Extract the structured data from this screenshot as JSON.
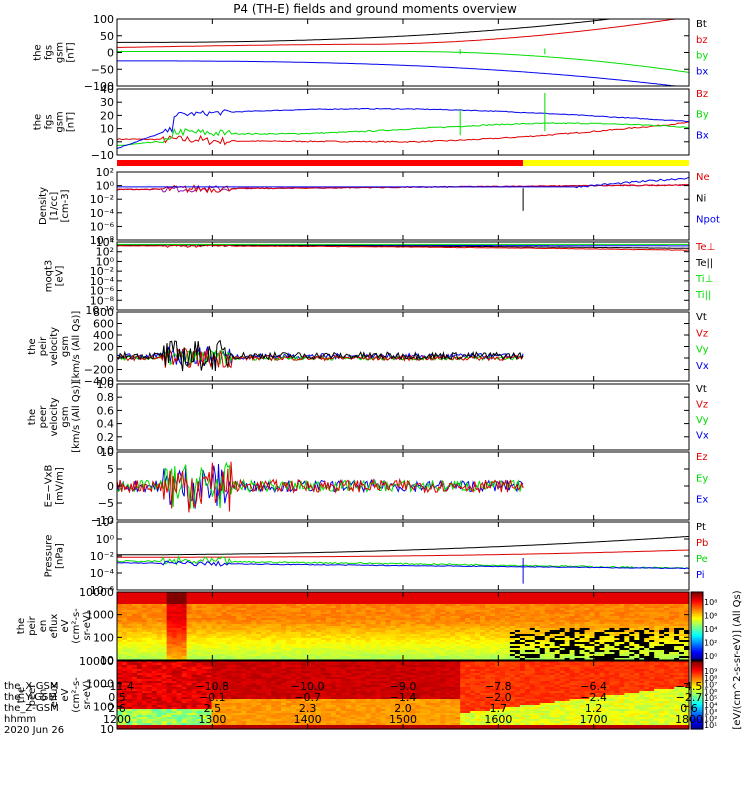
{
  "title": "P4 (TH-E) fields and ground moments overview",
  "colors": {
    "black": "#000000",
    "red": "#e00000",
    "green": "#00dd00",
    "blue": "#0000ee",
    "purple": "#8a1aa8"
  },
  "panels": [
    {
      "id": "fgs_gsm",
      "ylabel": [
        "the",
        "fgs",
        "gsm",
        "[nT]"
      ],
      "yticks": [
        "100",
        "50",
        "0",
        "−50",
        "−100"
      ],
      "ylim": [
        -100,
        100
      ],
      "legend": [
        {
          "text": "Bt",
          "color": "#000000"
        },
        {
          "text": "bz",
          "color": "#e00000"
        },
        {
          "text": "by",
          "color": "#00dd00"
        },
        {
          "text": "bx",
          "color": "#0000ee"
        }
      ]
    },
    {
      "id": "fgs_dsl",
      "ylabel": [
        "the",
        "fgs",
        "gsm",
        "[nT]"
      ],
      "yticks": [
        "40",
        "30",
        "20",
        "10",
        "0",
        "−10"
      ],
      "ylim": [
        -10,
        40
      ],
      "legend": [
        {
          "text": "Bz",
          "color": "#e00000"
        },
        {
          "text": "By",
          "color": "#00dd00"
        },
        {
          "text": "Bx",
          "color": "#0000ee"
        }
      ]
    },
    {
      "id": "density",
      "ylabel": [
        "Density",
        "[1/cc]",
        "[cm-3]"
      ],
      "yticks": [
        "10²",
        "10⁰",
        "10⁻²",
        "10⁻⁴",
        "10⁻⁶",
        "10⁻⁸"
      ],
      "ylim": [
        -8,
        2.5
      ],
      "legend": [
        {
          "text": "Ne",
          "color": "#e00000"
        },
        {
          "text": "Ni",
          "color": "#000000"
        },
        {
          "text": "Npot",
          "color": "#0000ee"
        }
      ]
    },
    {
      "id": "temp",
      "ylabel": [
        "moqt3",
        "[eV]"
      ],
      "yticks": [
        "10⁴",
        "10²",
        "10⁰",
        "10⁻²",
        "10⁻⁴",
        "10⁻⁶",
        "10⁻⁸",
        "10⁻¹⁰"
      ],
      "ylim": [
        -10,
        4
      ],
      "legend": [
        {
          "text": "Te⊥",
          "color": "#e00000"
        },
        {
          "text": "Te||",
          "color": "#000000"
        },
        {
          "text": "Ti⊥",
          "color": "#00dd00"
        },
        {
          "text": "Ti||",
          "color": "#00dd00"
        }
      ]
    },
    {
      "id": "peir_vel",
      "ylabel": [
        "the",
        "peir",
        "velocity",
        "gsm",
        "[km/s (All Qs)]"
      ],
      "yticks": [
        "800",
        "600",
        "400",
        "200",
        "0",
        "−200",
        "−400"
      ],
      "ylim": [
        -400,
        800
      ],
      "legend": [
        {
          "text": "Vt",
          "color": "#000000"
        },
        {
          "text": "Vz",
          "color": "#e00000"
        },
        {
          "text": "Vy",
          "color": "#00dd00"
        },
        {
          "text": "Vx",
          "color": "#0000ee"
        }
      ]
    },
    {
      "id": "peer_vel",
      "ylabel": [
        "the",
        "peer",
        "velocity",
        "gsm",
        "[km/s (All Qs)]"
      ],
      "yticks": [
        "1.0",
        "0.8",
        "0.6",
        "0.4",
        "0.2",
        "0.0"
      ],
      "ylim": [
        0,
        1
      ],
      "legend": [
        {
          "text": "Vt",
          "color": "#000000"
        },
        {
          "text": "Vz",
          "color": "#e00000"
        },
        {
          "text": "Vy",
          "color": "#00dd00"
        },
        {
          "text": "Vx",
          "color": "#0000ee"
        }
      ]
    },
    {
      "id": "efield",
      "ylabel": [
        "E=−VxB",
        "[mV/m]"
      ],
      "yticks": [
        "10",
        "5",
        "0",
        "−5",
        "−10"
      ],
      "ylim": [
        -10,
        10
      ],
      "legend": [
        {
          "text": "Ez",
          "color": "#e00000"
        },
        {
          "text": "Ey",
          "color": "#00dd00"
        },
        {
          "text": "Ex",
          "color": "#0000ee"
        }
      ]
    },
    {
      "id": "pressure",
      "ylabel": [
        "Pressure",
        "[nPa]"
      ],
      "yticks": [
        "10²",
        "10⁰",
        "10⁻²",
        "10⁻⁴",
        "10⁻⁶"
      ],
      "ylim": [
        -6,
        2.5
      ],
      "legend": [
        {
          "text": "Pt",
          "color": "#000000"
        },
        {
          "text": "Pb",
          "color": "#e00000"
        },
        {
          "text": "Pe",
          "color": "#00dd00"
        },
        {
          "text": "Pi",
          "color": "#0000ee"
        }
      ]
    },
    {
      "id": "peir_en",
      "ylabel": [
        "the",
        "peir",
        "en",
        "eflux",
        "eV",
        "(cm²-s-",
        "sr-eV)"
      ],
      "yticks": [
        "10000",
        "1000",
        "100",
        "10"
      ],
      "ylim": [
        1,
        4.2
      ],
      "legend": []
    },
    {
      "id": "peer_en",
      "ylabel": [
        "the",
        "peer",
        "en",
        "eflux",
        "eV",
        "(cm²-s-",
        "sr-eV)"
      ],
      "yticks": [
        "10000",
        "1000",
        "100",
        "10"
      ],
      "ylim": [
        1,
        4.2
      ],
      "legend": []
    }
  ],
  "colorbars": {
    "upper_ticks": [
      "10⁸",
      "10⁶",
      "10⁴",
      "10²",
      "10⁰"
    ],
    "lower_ticks": [
      "10⁹",
      "10⁸",
      "10⁷",
      "10⁶",
      "10⁵",
      "10⁴",
      "10³",
      "10²",
      "10¹"
    ],
    "label": "[eV/(cm^2-s-sr-eV)] (All Qs)"
  },
  "chart_data": {
    "type": "line",
    "x_label": "hhmm",
    "x_range": [
      "1200",
      "1800"
    ],
    "x_ticks": [
      "1200",
      "1300",
      "1400",
      "1500",
      "1600",
      "1700",
      "1800"
    ],
    "ephemeris": {
      "labels": [
        "the_X-GSM",
        "the_Y-GSM",
        "the_Z-GSM",
        "hhmm",
        "2020 Jun 26"
      ],
      "x_gsm": [
        "−11.4",
        "−10.8",
        "−10.0",
        "−9.0",
        "−7.8",
        "−6.4",
        "−4.5"
      ],
      "y_gsm": [
        "0.5",
        "−0.1",
        "−0.7",
        "−1.4",
        "−2.0",
        "−2.4",
        "−2.7"
      ],
      "z_gsm": [
        "2.6",
        "2.5",
        "2.3",
        "2.0",
        "1.7",
        "1.2",
        "0.6"
      ],
      "hhmm": [
        "1200",
        "1300",
        "1400",
        "1500",
        "1600",
        "1700",
        "1800"
      ]
    },
    "series_estimates": {
      "fgs_gsm": {
        "x": [
          1200,
          1300,
          1400,
          1500,
          1600,
          1700,
          1800
        ],
        "Bt": [
          30,
          36,
          40,
          52,
          70,
          100,
          130
        ],
        "bz": [
          15,
          20,
          15,
          20,
          40,
          85,
          130
        ],
        "by": [
          0,
          5,
          5,
          0,
          -10,
          -35,
          -100
        ],
        "bx": [
          -25,
          -25,
          -30,
          -40,
          -55,
          -80,
          -110
        ]
      },
      "fgs_dsl": {
        "x": [
          1200,
          1300,
          1400,
          1500,
          1600,
          1700,
          1800
        ],
        "Bz": [
          0,
          5,
          0,
          0,
          2,
          5,
          13
        ],
        "By": [
          -3,
          12,
          8,
          5,
          7,
          8,
          10
        ],
        "Bx": [
          -5,
          20,
          22,
          18,
          20,
          25,
          20
        ]
      },
      "density_log10": {
        "x": [
          1200,
          1300,
          1400,
          1500,
          1600,
          1700,
          1800
        ],
        "Ne": [
          -0.2,
          -0.3,
          -0.1,
          0,
          0.2,
          0.3,
          0.5
        ],
        "Npot": [
          null,
          null,
          null,
          null,
          0.2,
          1.0,
          1.6
        ]
      },
      "pressure_log10": {
        "x": [
          1200,
          1300,
          1400,
          1500,
          1600,
          1700,
          1800
        ],
        "Pt": [
          -1.6,
          -1.5,
          -1.3,
          -1.0,
          -0.6,
          0.1,
          0.7
        ],
        "Pb": [
          -1.9,
          -1.7,
          -1.7,
          -1.6,
          -1.5,
          -1.3,
          -0.9
        ],
        "Pe": [
          -2.4,
          -2.5,
          -2.6,
          -2.7,
          -2.8,
          -3.0,
          -3.3
        ],
        "Pi": [
          -2.6,
          -2.7,
          -2.8,
          -2.9,
          -3.0,
          -3.1,
          -3.3
        ]
      }
    }
  }
}
